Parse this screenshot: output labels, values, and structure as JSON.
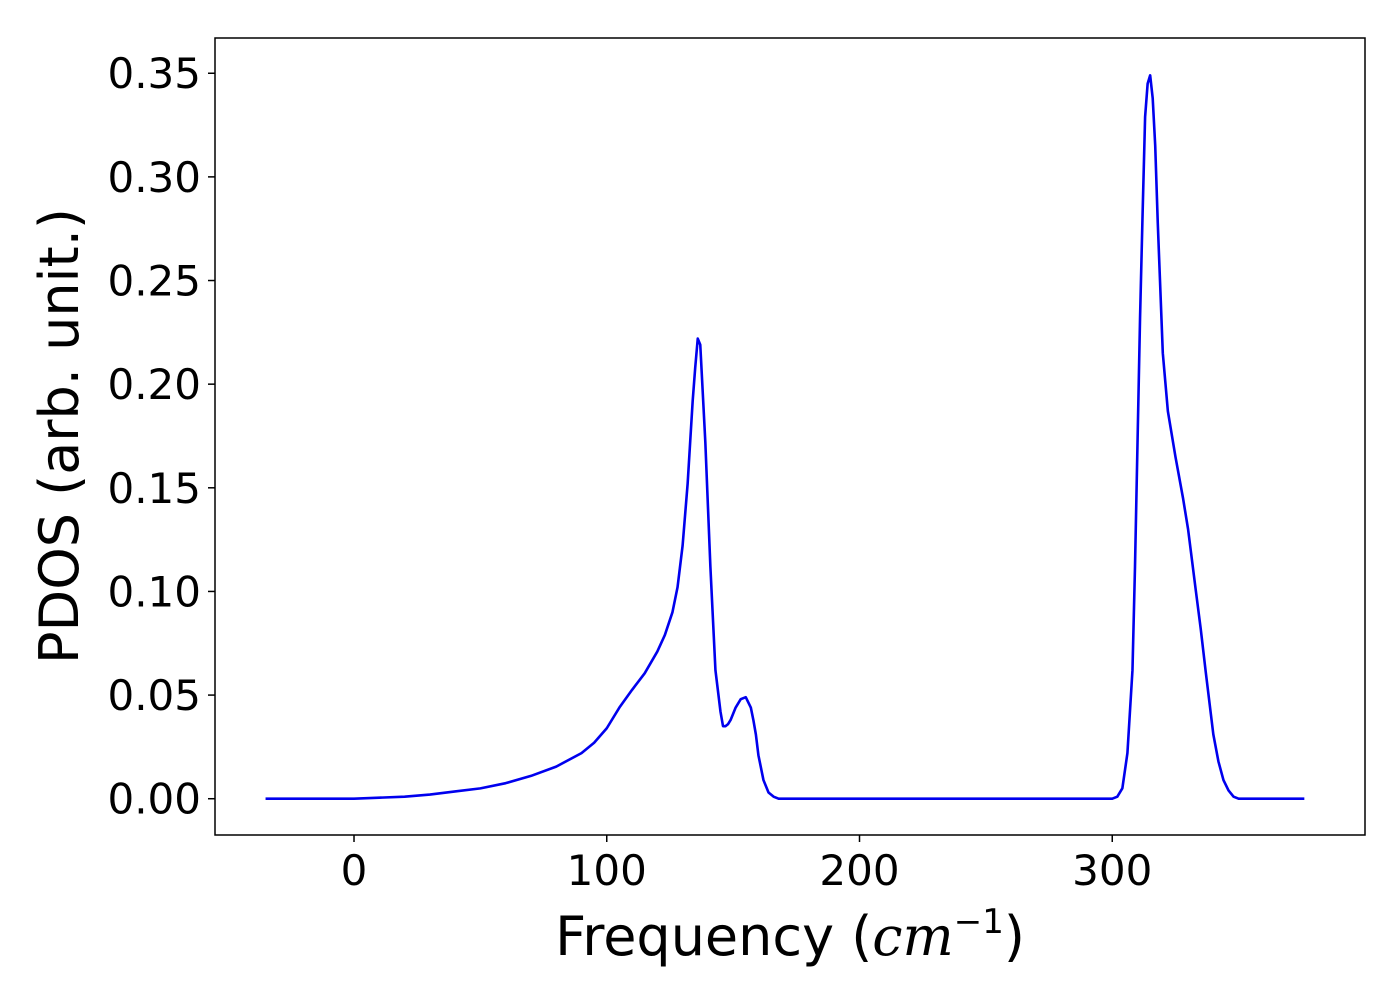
{
  "chart_data": {
    "type": "line",
    "title": "",
    "xlabel": {
      "text": "Frequency (",
      "unit_base": "cm",
      "unit_exponent": "−1",
      "close": ")"
    },
    "ylabel": "PDOS (arb. unit.)",
    "xlim": [
      -55,
      400
    ],
    "ylim": [
      -0.0175,
      0.367
    ],
    "xticks": [
      0,
      100,
      200,
      300
    ],
    "xtick_labels": [
      "0",
      "100",
      "200",
      "300"
    ],
    "yticks": [
      0.0,
      0.05,
      0.1,
      0.15,
      0.2,
      0.25,
      0.3,
      0.35
    ],
    "ytick_labels": [
      "0.00",
      "0.05",
      "0.10",
      "0.15",
      "0.20",
      "0.25",
      "0.30",
      "0.35"
    ],
    "grid": false,
    "legend": "none",
    "series": [
      {
        "color": "#0000ee",
        "x": [
          -35,
          0,
          10,
          20,
          30,
          40,
          50,
          60,
          70,
          80,
          90,
          95,
          100,
          105,
          110,
          115,
          120,
          123,
          126,
          128,
          130,
          132,
          133,
          134,
          135,
          136,
          137,
          139,
          141,
          143,
          145,
          146,
          147,
          148,
          149,
          150,
          151,
          153,
          155,
          157,
          158,
          159,
          160,
          162,
          164,
          166,
          168,
          170,
          172,
          175,
          180,
          200,
          250,
          300,
          302,
          304,
          306,
          308,
          309,
          310,
          311,
          312,
          313,
          314,
          315,
          316,
          317,
          318,
          320,
          322,
          325,
          328,
          330,
          333,
          335,
          337,
          339,
          340,
          342,
          344,
          346,
          348,
          350,
          352,
          355,
          360,
          376
        ],
        "y": [
          0.0,
          0.0,
          0.0005,
          0.001,
          0.002,
          0.0035,
          0.005,
          0.0075,
          0.011,
          0.0155,
          0.022,
          0.027,
          0.034,
          0.044,
          0.0525,
          0.0605,
          0.071,
          0.079,
          0.09,
          0.102,
          0.122,
          0.152,
          0.172,
          0.192,
          0.208,
          0.222,
          0.219,
          0.172,
          0.112,
          0.062,
          0.042,
          0.035,
          0.035,
          0.036,
          0.038,
          0.041,
          0.044,
          0.048,
          0.049,
          0.044,
          0.038,
          0.031,
          0.021,
          0.009,
          0.003,
          0.001,
          0.0,
          0.0,
          0.0,
          0.0,
          0.0,
          0.0,
          0.0,
          0.0,
          0.001,
          0.005,
          0.022,
          0.062,
          0.112,
          0.172,
          0.232,
          0.282,
          0.329,
          0.345,
          0.349,
          0.338,
          0.315,
          0.278,
          0.215,
          0.187,
          0.165,
          0.145,
          0.13,
          0.101,
          0.082,
          0.061,
          0.041,
          0.031,
          0.018,
          0.009,
          0.004,
          0.001,
          0.0,
          0.0,
          0.0,
          0.0,
          0.0
        ]
      }
    ]
  }
}
